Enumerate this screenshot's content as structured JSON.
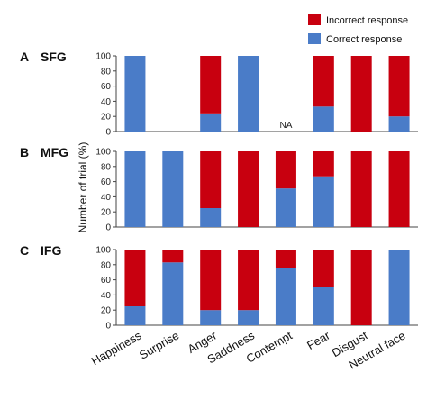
{
  "chart_data": [
    {
      "type": "bar",
      "stacked": true,
      "panel_letter": "A",
      "panel_name": "SFG",
      "categories": [
        "Happiness",
        "Surprise",
        "Anger",
        "Saddness",
        "Contempt",
        "Fear",
        "Disgust",
        "Neutral face"
      ],
      "series": [
        {
          "name": "Correct response",
          "values": [
            100,
            null,
            24,
            100,
            null,
            33,
            0,
            20
          ]
        },
        {
          "name": "Incorrect response",
          "values": [
            0,
            null,
            76,
            0,
            null,
            67,
            100,
            80
          ]
        }
      ],
      "annotations": [
        "NA",
        null,
        null,
        null,
        "NA",
        null,
        null,
        null
      ],
      "ylim": [
        0,
        100
      ],
      "yticks": [
        0,
        20,
        40,
        60,
        80,
        100
      ]
    },
    {
      "type": "bar",
      "stacked": true,
      "panel_letter": "B",
      "panel_name": "MFG",
      "categories": [
        "Happiness",
        "Surprise",
        "Anger",
        "Saddness",
        "Contempt",
        "Fear",
        "Disgust",
        "Neutral face"
      ],
      "series": [
        {
          "name": "Correct response",
          "values": [
            100,
            100,
            25,
            0,
            51,
            67,
            0,
            0
          ]
        },
        {
          "name": "Incorrect response",
          "values": [
            0,
            0,
            75,
            100,
            49,
            33,
            100,
            100
          ]
        }
      ],
      "ylim": [
        0,
        100
      ],
      "yticks": [
        0,
        20,
        40,
        60,
        80,
        100
      ]
    },
    {
      "type": "bar",
      "stacked": true,
      "panel_letter": "C",
      "panel_name": "IFG",
      "categories": [
        "Happiness",
        "Surprise",
        "Anger",
        "Saddness",
        "Contempt",
        "Fear",
        "Disgust",
        "Neutral face"
      ],
      "series": [
        {
          "name": "Correct response",
          "values": [
            25,
            83,
            20,
            20,
            75,
            50,
            0,
            100
          ]
        },
        {
          "name": "Incorrect response",
          "values": [
            75,
            17,
            80,
            80,
            25,
            50,
            100,
            0
          ]
        }
      ],
      "ylim": [
        0,
        100
      ],
      "yticks": [
        0,
        20,
        40,
        60,
        80,
        100
      ]
    }
  ],
  "ylabel": "Number of trial (%)",
  "legend": {
    "position": "top-right",
    "entries": [
      "Incorrect response",
      "Correct response"
    ]
  },
  "colors": {
    "correct": "#4a7cc8",
    "incorrect": "#c8000f",
    "axis": "#444444",
    "grid_bg": "#ffffff"
  }
}
